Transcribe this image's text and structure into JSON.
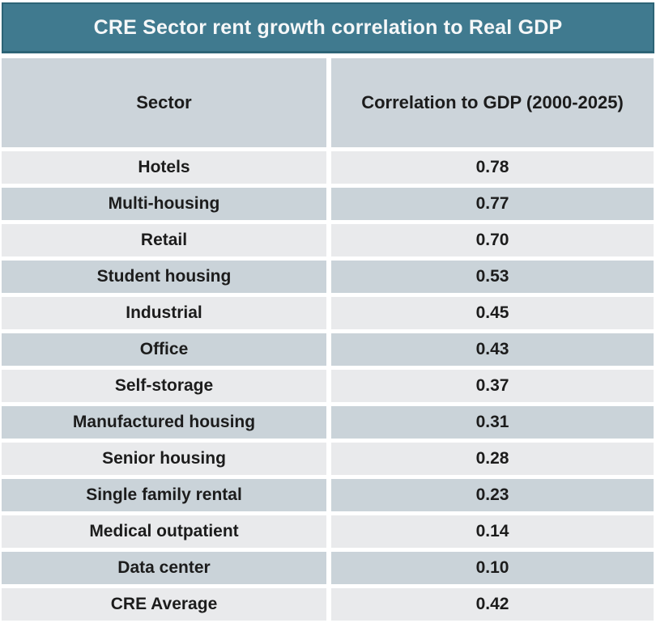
{
  "title": "CRE Sector rent growth correlation to Real GDP",
  "colors": {
    "title_bg": "#407a8f",
    "title_border": "#2d6476",
    "title_text": "#f5f7f8",
    "header_bg": "#ccd4da",
    "row_light": "#e9eaec",
    "row_dark": "#cad3d9",
    "cell_text": "#1c1c1c"
  },
  "table": {
    "columns": [
      "Sector",
      "Correlation to GDP (2000-2025)"
    ],
    "rows": [
      {
        "sector": "Hotels",
        "value": "0.78"
      },
      {
        "sector": "Multi-housing",
        "value": "0.77"
      },
      {
        "sector": "Retail",
        "value": "0.70"
      },
      {
        "sector": "Student housing",
        "value": "0.53"
      },
      {
        "sector": "Industrial",
        "value": "0.45"
      },
      {
        "sector": "Office",
        "value": "0.43"
      },
      {
        "sector": "Self-storage",
        "value": "0.37"
      },
      {
        "sector": "Manufactured housing",
        "value": "0.31"
      },
      {
        "sector": "Senior housing",
        "value": "0.28"
      },
      {
        "sector": "Single family rental",
        "value": "0.23"
      },
      {
        "sector": "Medical outpatient",
        "value": "0.14"
      },
      {
        "sector": "Data center",
        "value": "0.10"
      },
      {
        "sector": "CRE Average",
        "value": "0.42"
      }
    ]
  },
  "chart_data": {
    "type": "table",
    "title": "CRE Sector rent growth correlation to Real GDP",
    "columns": [
      "Sector",
      "Correlation to GDP (2000-2025)"
    ],
    "categories": [
      "Hotels",
      "Multi-housing",
      "Retail",
      "Student housing",
      "Industrial",
      "Office",
      "Self-storage",
      "Manufactured housing",
      "Senior housing",
      "Single family rental",
      "Medical outpatient",
      "Data center",
      "CRE Average"
    ],
    "values": [
      0.78,
      0.77,
      0.7,
      0.53,
      0.45,
      0.43,
      0.37,
      0.31,
      0.28,
      0.23,
      0.14,
      0.1,
      0.42
    ]
  }
}
